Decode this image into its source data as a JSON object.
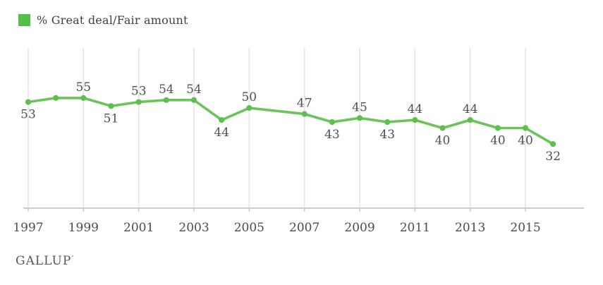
{
  "legend": {
    "label": "% Great deal/Fair amount"
  },
  "footer": {
    "brand": "GALLUP",
    "trademark_mark": "ʼ"
  },
  "colors": {
    "legend_swatch": "#54BE49",
    "line": "#69C558",
    "marker": "#5FBF4E",
    "value_label": "#4F5054",
    "axis_label": "#4B4C50",
    "legend_text": "#3E3F43",
    "gridline": "#E4E4E5",
    "axis_line": "#CDCDCD",
    "brand_text": "#55565B"
  },
  "chart_data": {
    "type": "line",
    "title": "",
    "xlabel": "",
    "ylabel": "",
    "legend_position": "top-left",
    "grid": "vertical-only",
    "y_axis_visible": false,
    "xlim": [
      1997,
      2016
    ],
    "ylim": [
      0,
      80
    ],
    "x_ticks": [
      1997,
      1999,
      2001,
      2003,
      2005,
      2007,
      2009,
      2011,
      2013,
      2015
    ],
    "series": [
      {
        "name": "% Great deal/Fair amount",
        "points": [
          {
            "x": 1997,
            "y": 53,
            "label": "53",
            "label_pos": "below"
          },
          {
            "x": 1998,
            "y": 55,
            "label": "",
            "label_pos": "none"
          },
          {
            "x": 1999,
            "y": 55,
            "label": "55",
            "label_pos": "above"
          },
          {
            "x": 2000,
            "y": 51,
            "label": "51",
            "label_pos": "below"
          },
          {
            "x": 2001,
            "y": 53,
            "label": "53",
            "label_pos": "above"
          },
          {
            "x": 2002,
            "y": 54,
            "label": "54",
            "label_pos": "above"
          },
          {
            "x": 2003,
            "y": 54,
            "label": "54",
            "label_pos": "above"
          },
          {
            "x": 2004,
            "y": 44,
            "label": "44",
            "label_pos": "below"
          },
          {
            "x": 2005,
            "y": 50,
            "label": "50",
            "label_pos": "above"
          },
          {
            "x": 2007,
            "y": 47,
            "label": "47",
            "label_pos": "above"
          },
          {
            "x": 2008,
            "y": 43,
            "label": "43",
            "label_pos": "below"
          },
          {
            "x": 2009,
            "y": 45,
            "label": "45",
            "label_pos": "above"
          },
          {
            "x": 2010,
            "y": 43,
            "label": "43",
            "label_pos": "below"
          },
          {
            "x": 2011,
            "y": 44,
            "label": "44",
            "label_pos": "above"
          },
          {
            "x": 2012,
            "y": 40,
            "label": "40",
            "label_pos": "below"
          },
          {
            "x": 2013,
            "y": 44,
            "label": "44",
            "label_pos": "above"
          },
          {
            "x": 2014,
            "y": 40,
            "label": "40",
            "label_pos": "below"
          },
          {
            "x": 2015,
            "y": 40,
            "label": "40",
            "label_pos": "below"
          },
          {
            "x": 2016,
            "y": 32,
            "label": "32",
            "label_pos": "below"
          }
        ]
      }
    ]
  }
}
